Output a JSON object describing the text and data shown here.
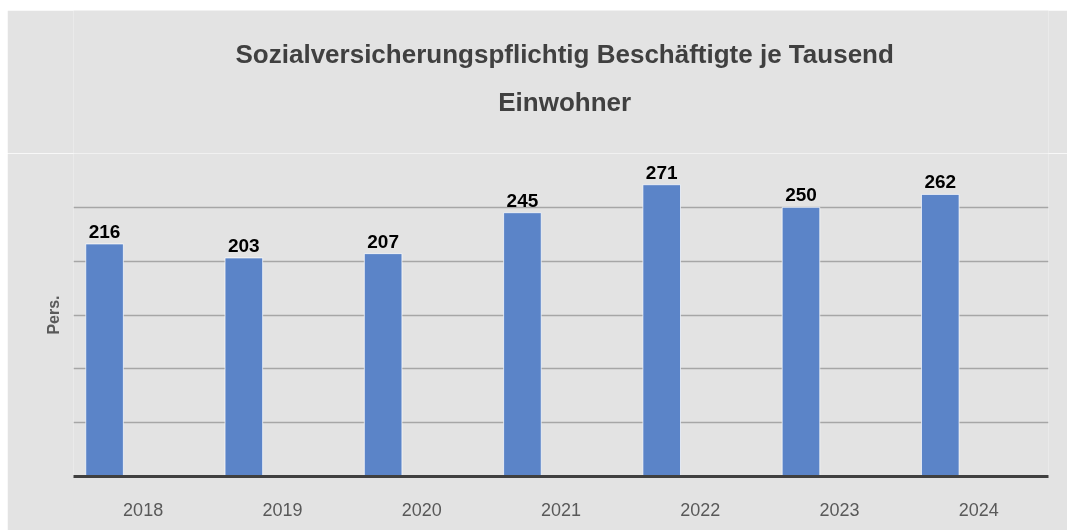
{
  "chart_data": {
    "type": "bar",
    "title": "Sozialversicherungspflichtig Beschäftigte je Tausend Einwohner",
    "ylabel": "Pers.",
    "categories": [
      "2018",
      "2019",
      "2020",
      "2021",
      "2022",
      "2023",
      "2024"
    ],
    "values": [
      216,
      203,
      207,
      245,
      271,
      250,
      262
    ],
    "color": "#5b84c8",
    "ylim": [
      0,
      300
    ],
    "yticks": [
      0,
      50,
      100,
      150,
      200,
      250,
      300
    ],
    "grid": "y",
    "tick_labels": "x",
    "data_labels": true
  }
}
